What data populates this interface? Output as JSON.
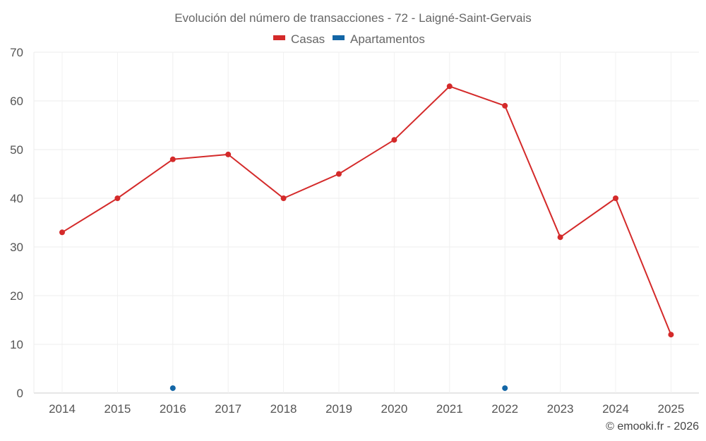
{
  "chart_data": {
    "type": "line",
    "title": "Evolución del número de transacciones - 72 - Laigné-Saint-Gervais",
    "categories": [
      "2014",
      "2015",
      "2016",
      "2017",
      "2018",
      "2019",
      "2020",
      "2021",
      "2022",
      "2023",
      "2024",
      "2025"
    ],
    "series": [
      {
        "name": "Casas",
        "color": "#d42a2a",
        "values": [
          33,
          40,
          48,
          49,
          40,
          45,
          52,
          63,
          59,
          32,
          40,
          12
        ],
        "line": true
      },
      {
        "name": "Apartamentos",
        "color": "#1366a6",
        "values": [
          null,
          null,
          1,
          null,
          null,
          null,
          null,
          null,
          1,
          null,
          null,
          null
        ],
        "line": false
      }
    ],
    "y_ticks": [
      "0",
      "10",
      "20",
      "30",
      "40",
      "50",
      "60",
      "70"
    ],
    "ylim": [
      0,
      70
    ],
    "grid": true,
    "legend_position": "top-center",
    "credit": "© emooki.fr - 2026"
  }
}
